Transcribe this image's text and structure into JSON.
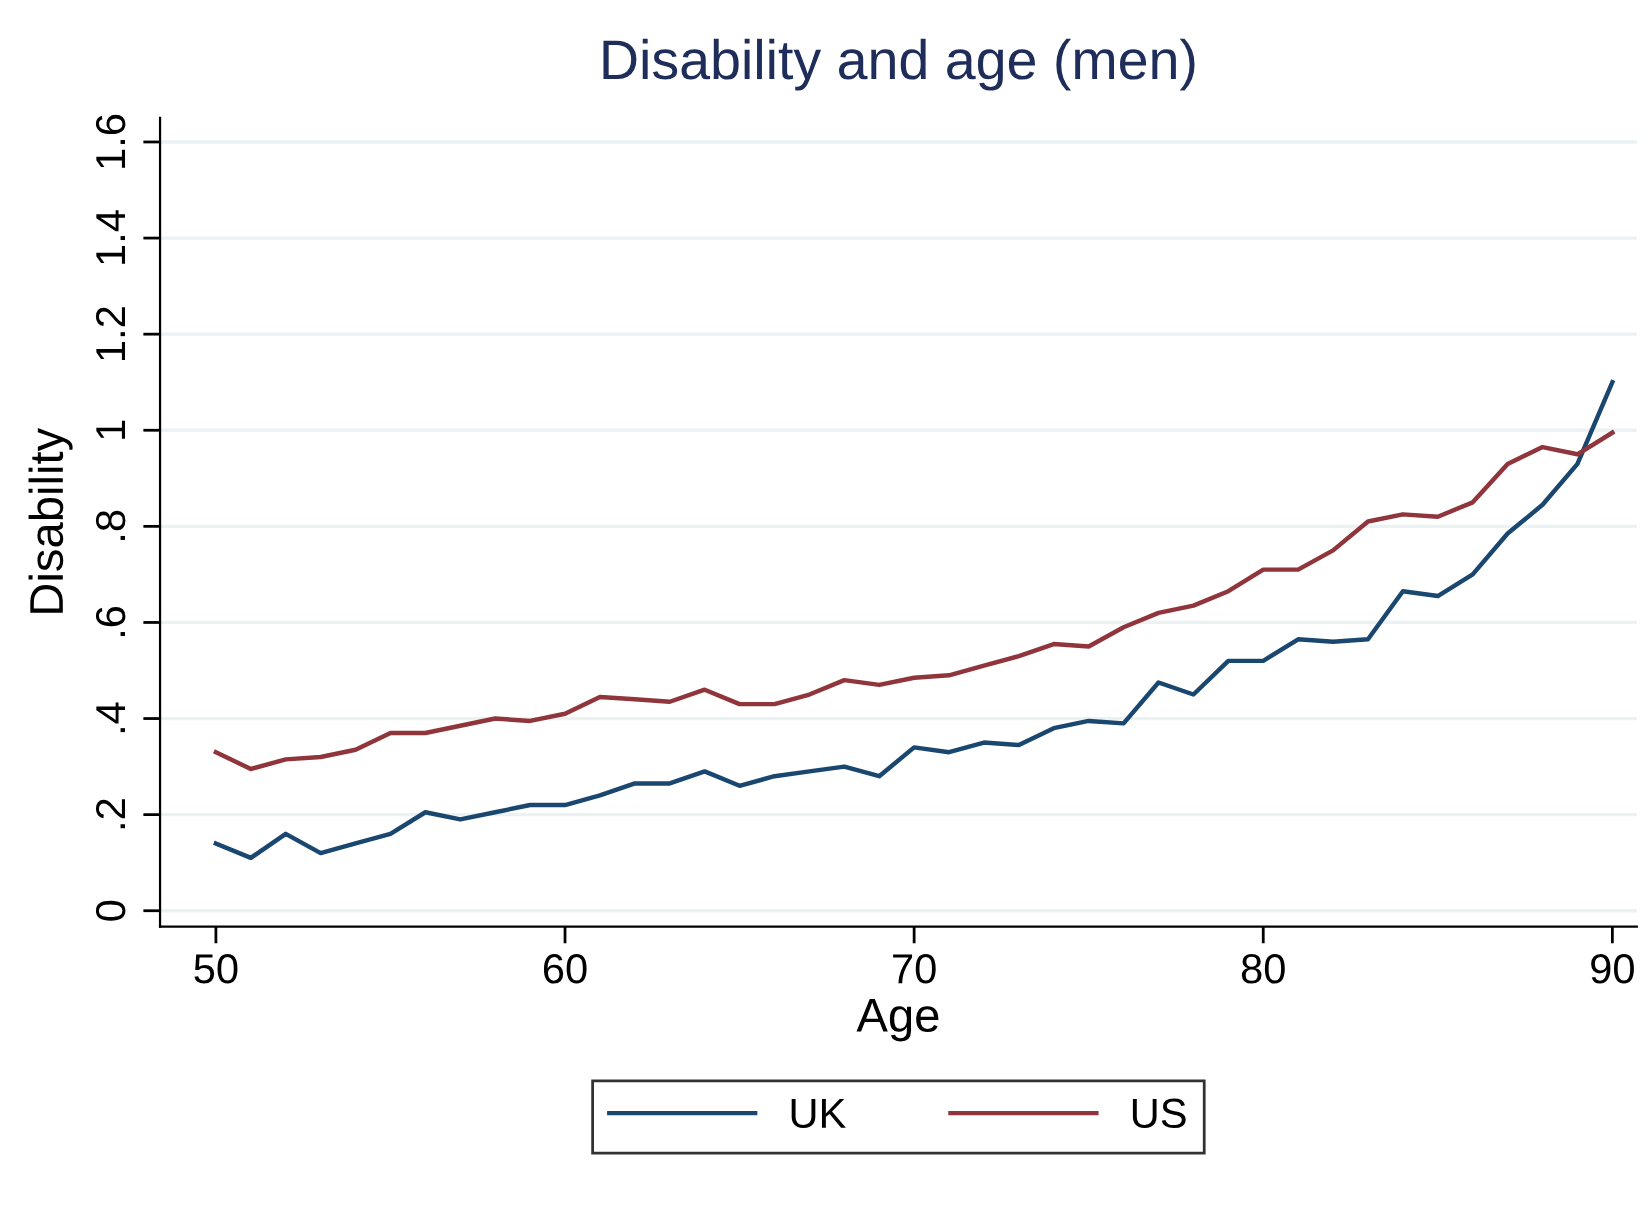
{
  "chart_data": {
    "type": "line",
    "title": "Disability and age (men)",
    "xlabel": "Age",
    "ylabel": "Disability",
    "x": [
      50,
      51,
      52,
      53,
      54,
      55,
      56,
      57,
      58,
      59,
      60,
      61,
      62,
      63,
      64,
      65,
      66,
      67,
      68,
      69,
      70,
      71,
      72,
      73,
      74,
      75,
      76,
      77,
      78,
      79,
      80,
      81,
      82,
      83,
      84,
      85,
      86,
      87,
      88,
      89,
      90
    ],
    "series": [
      {
        "name": "UK",
        "color": "#1a476f",
        "values": [
          0.14,
          0.11,
          0.16,
          0.12,
          0.14,
          0.16,
          0.205,
          0.19,
          0.205,
          0.22,
          0.22,
          0.24,
          0.265,
          0.265,
          0.29,
          0.26,
          0.28,
          0.29,
          0.3,
          0.28,
          0.34,
          0.33,
          0.35,
          0.345,
          0.38,
          0.395,
          0.39,
          0.475,
          0.45,
          0.52,
          0.52,
          0.565,
          0.56,
          0.565,
          0.665,
          0.655,
          0.7,
          0.785,
          0.845,
          0.93,
          1.1
        ]
      },
      {
        "name": "US",
        "color": "#90353b",
        "values": [
          0.33,
          0.295,
          0.315,
          0.32,
          0.335,
          0.37,
          0.37,
          0.385,
          0.4,
          0.395,
          0.41,
          0.445,
          0.44,
          0.435,
          0.46,
          0.43,
          0.43,
          0.45,
          0.48,
          0.47,
          0.485,
          0.49,
          0.51,
          0.53,
          0.555,
          0.55,
          0.59,
          0.62,
          0.635,
          0.665,
          0.71,
          0.71,
          0.75,
          0.81,
          0.825,
          0.82,
          0.85,
          0.93,
          0.965,
          0.95,
          0.995
        ]
      }
    ],
    "xlim": [
      48.4,
      90.7
    ],
    "xticks": [
      50,
      60,
      70,
      80,
      90
    ],
    "ylim": [
      -0.033,
      1.65
    ],
    "yticks": [
      0,
      {
        "value": 0.2,
        "label": ".2"
      },
      {
        "value": 0.4,
        "label": ".4"
      },
      {
        "value": 0.6,
        "label": ".6"
      },
      {
        "value": 0.8,
        "label": ".8"
      },
      1,
      {
        "value": 1.2,
        "label": "1.2"
      },
      {
        "value": 1.4,
        "label": "1.4"
      },
      {
        "value": 1.6,
        "label": "1.6"
      }
    ],
    "grid": "y",
    "legend": "bottom",
    "marker": "none",
    "line_style": "solid"
  }
}
